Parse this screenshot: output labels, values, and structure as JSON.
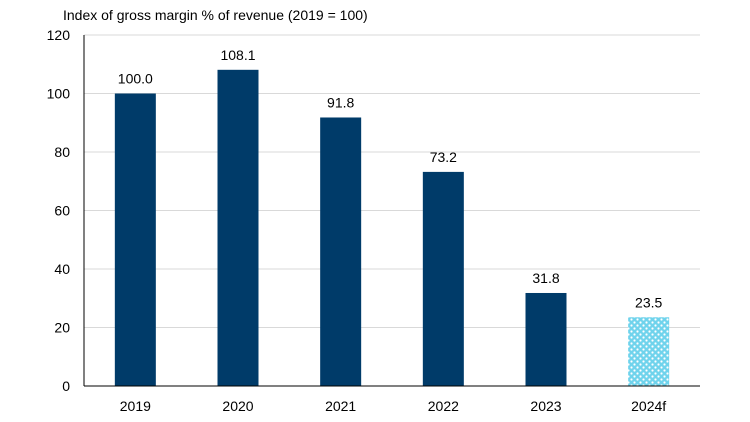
{
  "chart_data": {
    "type": "bar",
    "title": "Index of gross margin % of revenue (2019 = 100)",
    "xlabel": "",
    "ylabel": "",
    "categories": [
      "2019",
      "2020",
      "2021",
      "2022",
      "2023",
      "2024f"
    ],
    "values": [
      100.0,
      108.1,
      91.8,
      73.2,
      31.8,
      23.5
    ],
    "value_labels": [
      "100.0",
      "108.1",
      "91.8",
      "73.2",
      "31.8",
      "23.5"
    ],
    "forecast": [
      false,
      false,
      false,
      false,
      false,
      true
    ],
    "ylim": [
      0,
      120
    ],
    "yticks": [
      0,
      20,
      40,
      60,
      80,
      100,
      120
    ],
    "grid": true,
    "legend": "none",
    "colors": {
      "bar": "#003b69",
      "forecast_fill": "#6fd3ec",
      "forecast_dots": "#ffffff",
      "grid": "#d9d9d9",
      "axis": "#000000"
    }
  }
}
